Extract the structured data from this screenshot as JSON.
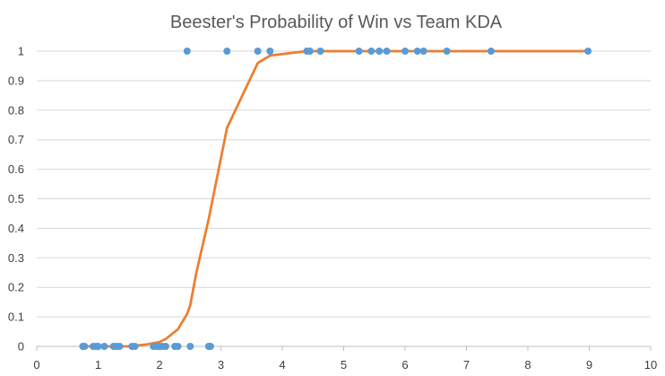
{
  "chart_data": {
    "type": "scatter",
    "title": "Beester's Probability of Win vs Team KDA",
    "xlabel": "",
    "ylabel": "",
    "xlim": [
      0,
      10
    ],
    "ylim": [
      0,
      1
    ],
    "x_ticks": [
      "0",
      "1",
      "2",
      "3",
      "4",
      "5",
      "6",
      "7",
      "8",
      "9",
      "10"
    ],
    "y_ticks": [
      "0",
      "0.1",
      "0.2",
      "0.3",
      "0.4",
      "0.5",
      "0.6",
      "0.7",
      "0.8",
      "0.9",
      "1"
    ],
    "grid": "horizontal",
    "legend": "none",
    "series": [
      {
        "kind": "scatter",
        "color": "#5b9bd5",
        "x": [
          0.75,
          0.78,
          0.92,
          0.97,
          1.0,
          1.1,
          1.25,
          1.3,
          1.35,
          1.55,
          1.6,
          1.9,
          1.95,
          2.0,
          2.05,
          2.1,
          2.25,
          2.3,
          2.5,
          2.8,
          2.83,
          2.45,
          3.1,
          3.6,
          3.8,
          4.4,
          4.45,
          4.62,
          5.25,
          5.45,
          5.58,
          5.7,
          6.0,
          6.2,
          6.3,
          6.68,
          7.4,
          8.98
        ],
        "y": [
          0,
          0,
          0,
          0,
          0,
          0,
          0,
          0,
          0,
          0,
          0,
          0,
          0,
          0,
          0,
          0,
          0,
          0,
          0,
          0,
          0,
          1,
          1,
          1,
          1,
          1,
          1,
          1,
          1,
          1,
          1,
          1,
          1,
          1,
          1,
          1,
          1,
          1
        ]
      },
      {
        "kind": "line",
        "color": "#ed7d31",
        "x": [
          0.75,
          1.0,
          1.5,
          1.8,
          2.0,
          2.1,
          2.3,
          2.45,
          2.5,
          2.6,
          2.8,
          3.1,
          3.6,
          3.8,
          4.4,
          5.0,
          6.0,
          7.0,
          9.0
        ],
        "y": [
          0,
          0,
          0,
          0.007,
          0.015,
          0.025,
          0.058,
          0.11,
          0.14,
          0.25,
          0.43,
          0.74,
          0.96,
          0.985,
          1,
          1,
          1,
          1,
          1
        ]
      }
    ]
  }
}
